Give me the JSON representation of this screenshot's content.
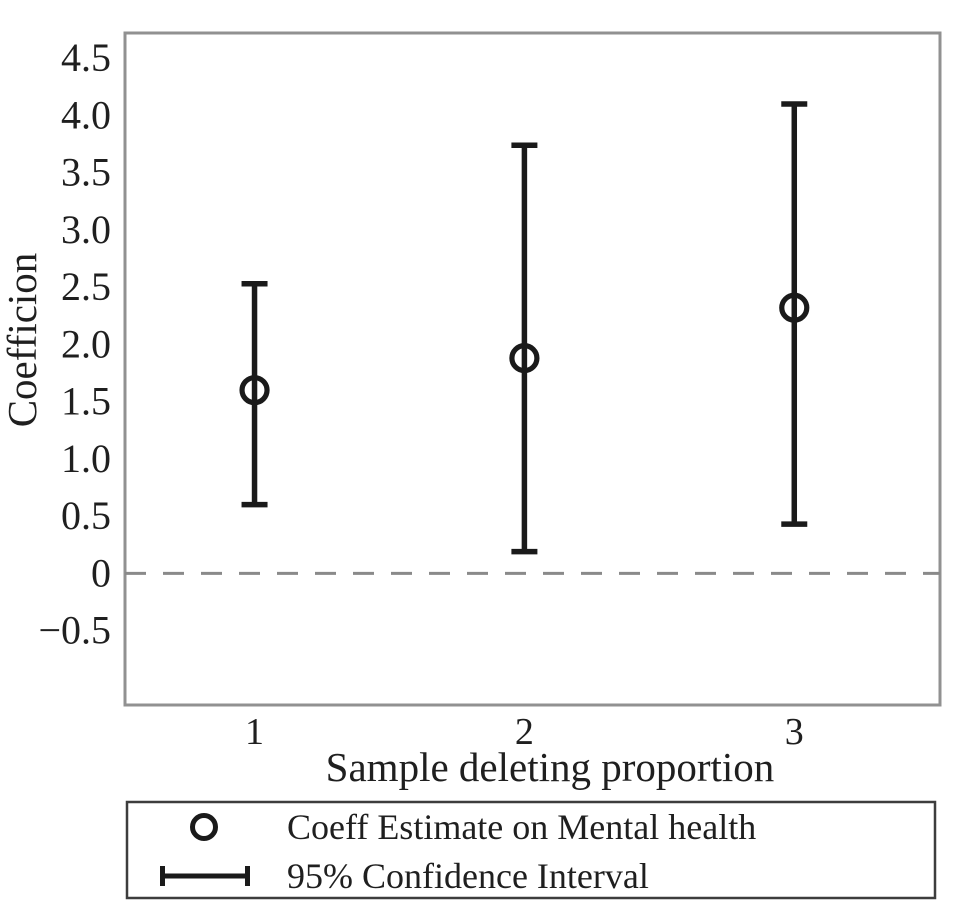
{
  "figure": {
    "background": "#ffffff",
    "colors": {
      "text": "#1f1f1f",
      "frame": "#919191",
      "zero_line": "#8a8a8a",
      "series": "#1a1a1a",
      "legend_border": "#3d3d3d"
    }
  },
  "chart_data": {
    "type": "scatter",
    "subtype": "coefficient-plot-with-error-bars",
    "title": "",
    "xlabel": "Sample deleting proportion",
    "ylabel": "Coefficion",
    "categories": [
      1,
      2,
      3
    ],
    "series": [
      {
        "name": "Coeff Estimate on Mental health",
        "marker": "open-circle",
        "values": [
          1.6,
          1.88,
          2.32
        ]
      },
      {
        "name": "95% Confidence Interval",
        "marker": "errorbar",
        "lower": [
          0.6,
          0.19,
          0.43
        ],
        "upper": [
          2.53,
          3.74,
          4.1
        ]
      }
    ],
    "xlim": [
      0.52,
      3.54
    ],
    "ylim": [
      -1.15,
      4.72
    ],
    "xtick_values": [
      1,
      2,
      3
    ],
    "xtick_labels": [
      "1",
      "2",
      "3"
    ],
    "ytick_values": [
      4.5,
      4.0,
      3.5,
      3.0,
      2.5,
      2.0,
      1.5,
      1.0,
      0.5,
      0,
      -0.5
    ],
    "ytick_labels": [
      "4.5",
      "4.0",
      "3.5",
      "3.0",
      "2.5",
      "2.0",
      "1.5",
      "1.0",
      "0.5",
      "0",
      "−0.5"
    ],
    "zero_reference_line": {
      "value": 0,
      "style": "dashed"
    },
    "grid": false,
    "legend": {
      "position": "bottom-left",
      "entries": [
        {
          "marker": "open-circle",
          "label": "Coeff Estimate on Mental health"
        },
        {
          "marker": "errorbar",
          "label": "95% Confidence Interval"
        }
      ]
    }
  }
}
